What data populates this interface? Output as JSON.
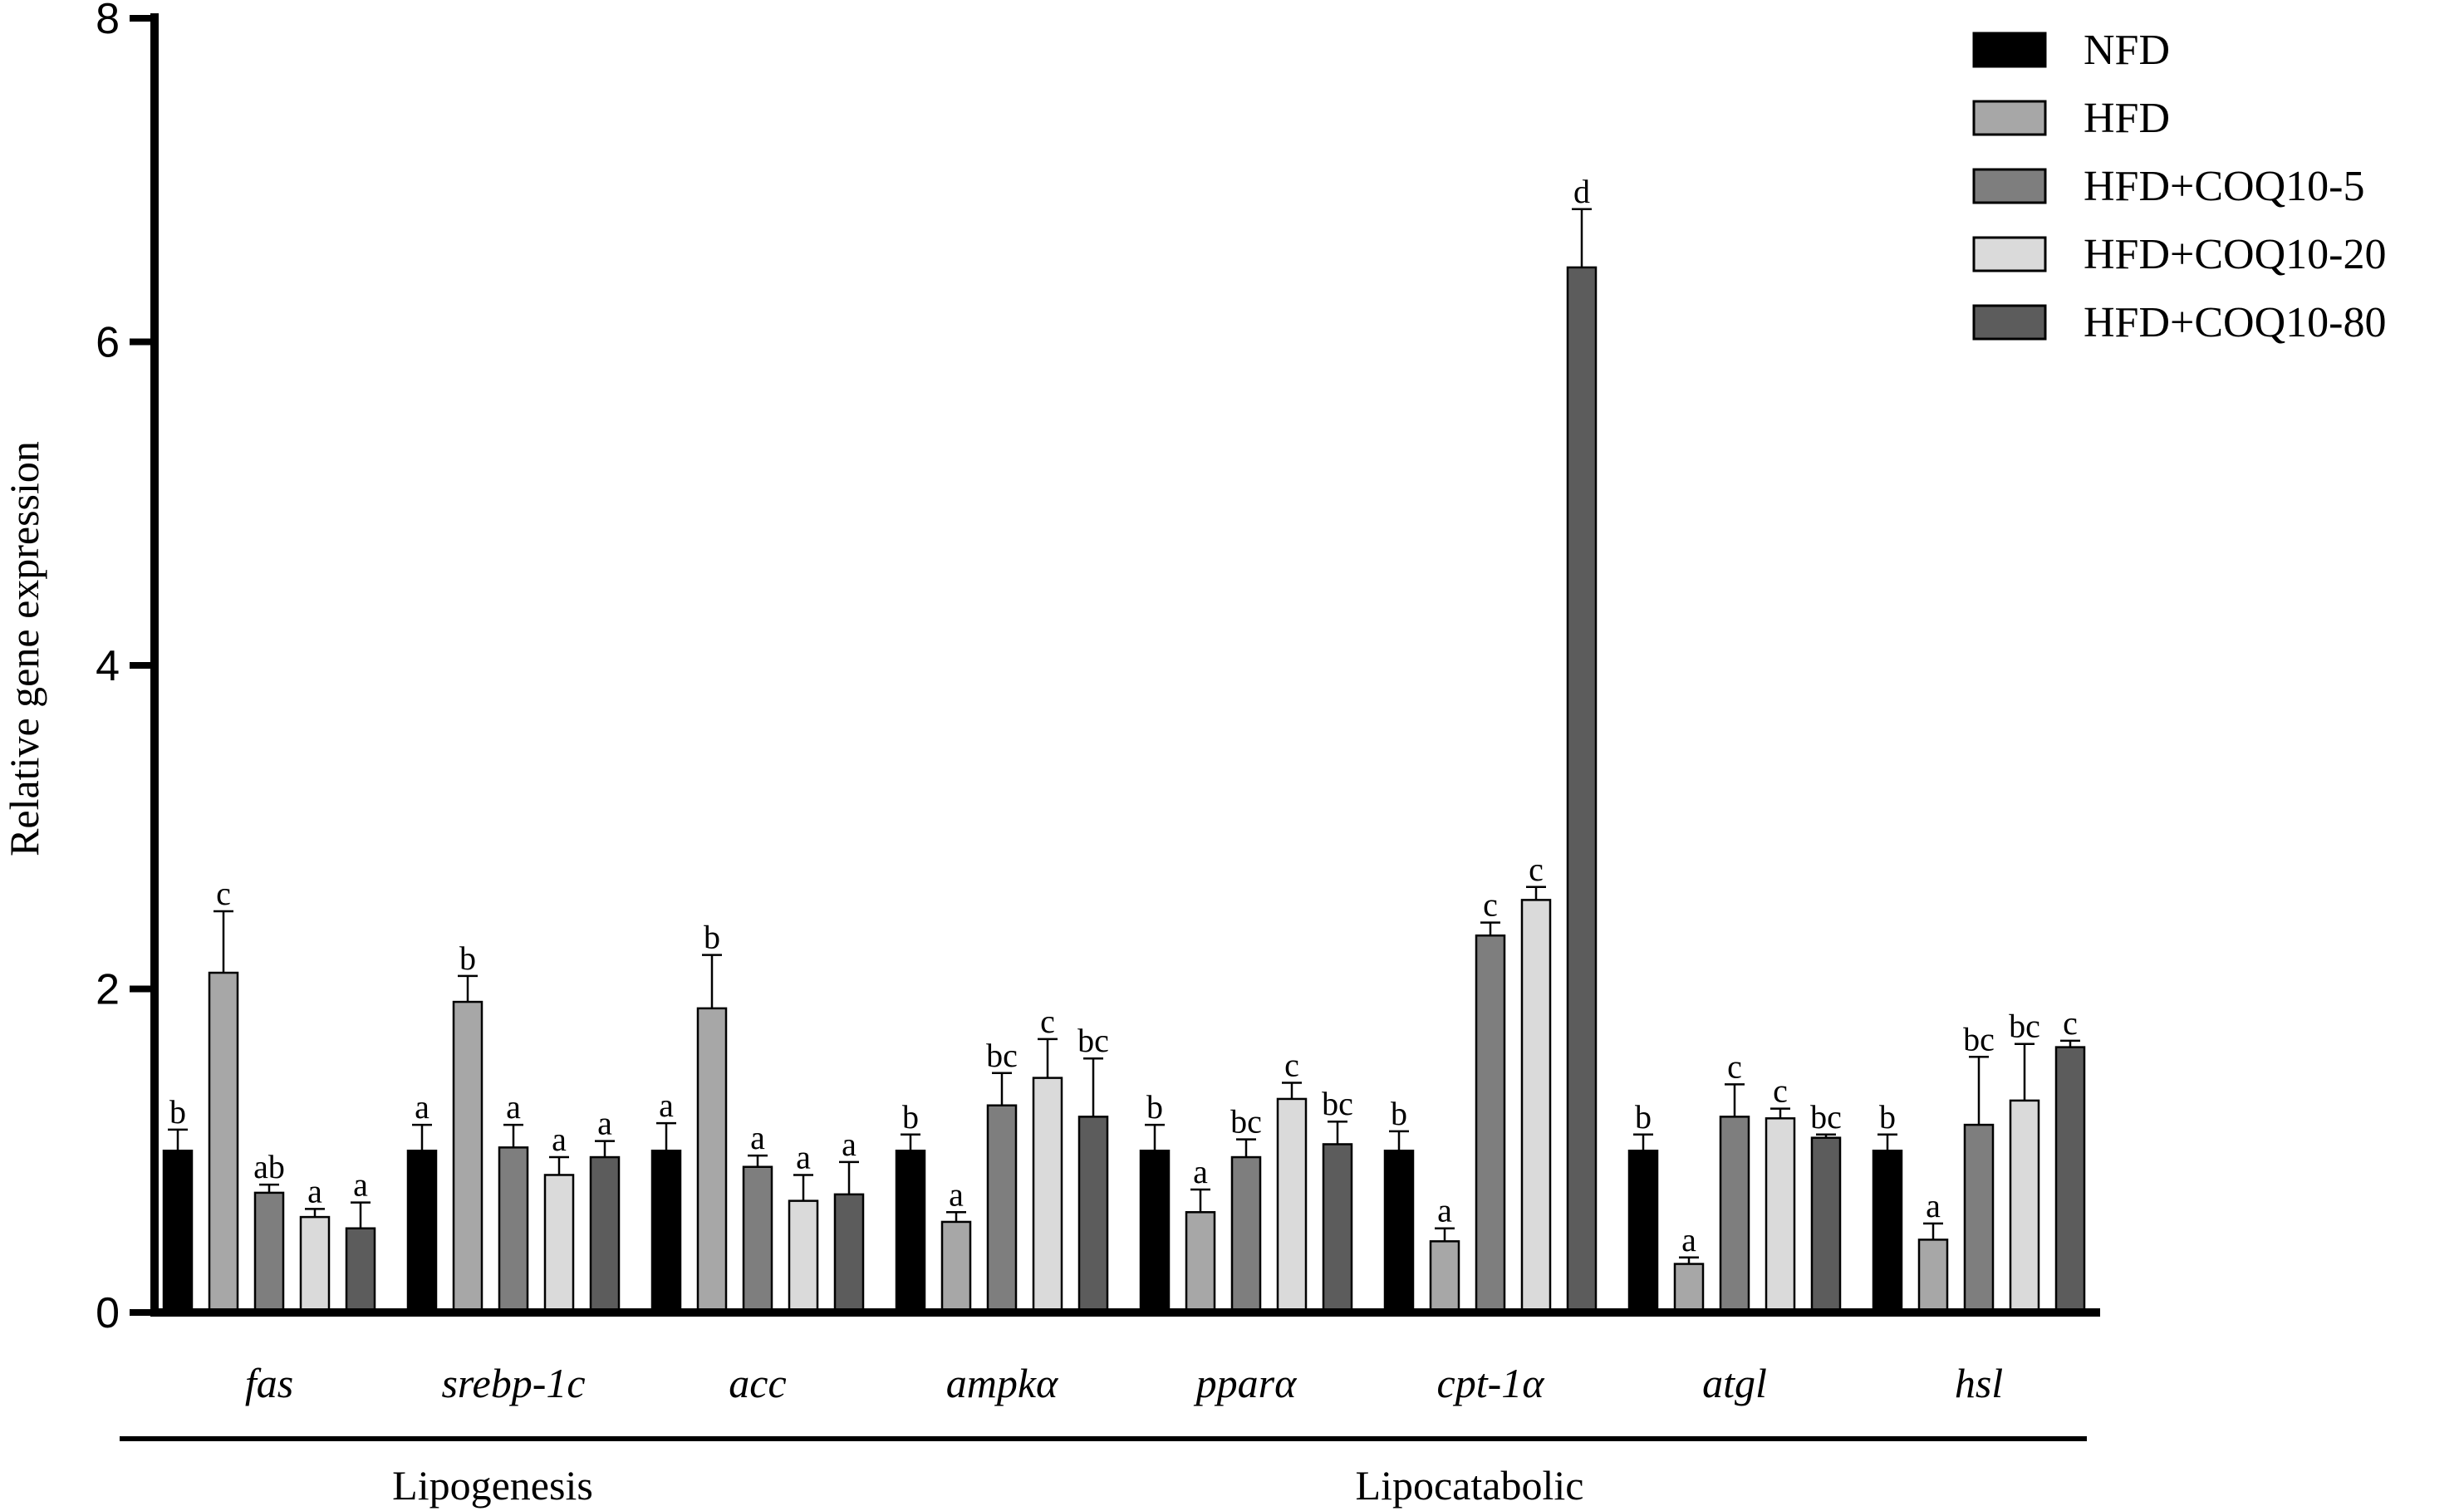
{
  "chart_data": {
    "type": "bar",
    "ylabel": "Relative gene expression",
    "ylim": [
      0,
      8
    ],
    "yticks": [
      0,
      2,
      4,
      6,
      8
    ],
    "categories": [
      "fas",
      "srebp-1c",
      "acc",
      "ampkα",
      "pparα",
      "cpt-1α",
      "atgl",
      "hsl"
    ],
    "groups": [
      {
        "label": "Lipogenesis",
        "categories": [
          "fas",
          "srebp-1c",
          "acc"
        ]
      },
      {
        "label": "Lipocatabolic",
        "categories": [
          "ampkα",
          "pparα",
          "cpt-1α",
          "atgl",
          "hsl"
        ]
      }
    ],
    "legend_position": "top-right",
    "series": [
      {
        "name": "NFD",
        "color": "#000000",
        "values": [
          1.0,
          1.0,
          1.0,
          1.0,
          1.0,
          1.0,
          1.0,
          1.0
        ],
        "errors": [
          0.13,
          0.16,
          0.17,
          0.1,
          0.16,
          0.12,
          0.1,
          0.1
        ],
        "sig": [
          "b",
          "a",
          "a",
          "b",
          "b",
          "b",
          "b",
          "b"
        ]
      },
      {
        "name": "HFD",
        "color": "#a7a7a7",
        "values": [
          2.1,
          1.92,
          1.88,
          0.56,
          0.62,
          0.44,
          0.3,
          0.45
        ],
        "errors": [
          0.38,
          0.16,
          0.33,
          0.06,
          0.14,
          0.08,
          0.04,
          0.1
        ],
        "sig": [
          "c",
          "b",
          "b",
          "a",
          "a",
          "a",
          "a",
          "a"
        ]
      },
      {
        "name": "HFD+COQ10-5",
        "color": "#7e7e7e",
        "values": [
          0.74,
          1.02,
          0.9,
          1.28,
          0.96,
          2.33,
          1.21,
          1.16
        ],
        "errors": [
          0.05,
          0.14,
          0.07,
          0.2,
          0.11,
          0.08,
          0.2,
          0.42
        ],
        "sig": [
          "ab",
          "a",
          "a",
          "bc",
          "bc",
          "c",
          "c",
          "bc"
        ]
      },
      {
        "name": "HFD+COQ10-20",
        "color": "#dadada",
        "values": [
          0.59,
          0.85,
          0.69,
          1.45,
          1.32,
          2.55,
          1.2,
          1.31
        ],
        "errors": [
          0.05,
          0.11,
          0.16,
          0.24,
          0.1,
          0.08,
          0.06,
          0.35
        ],
        "sig": [
          "a",
          "a",
          "a",
          "c",
          "c",
          "c",
          "c",
          "bc"
        ]
      },
      {
        "name": "HFD+COQ10-80",
        "color": "#5c5c5c",
        "values": [
          0.52,
          0.96,
          0.73,
          1.21,
          1.04,
          6.46,
          1.08,
          1.64
        ],
        "errors": [
          0.16,
          0.1,
          0.2,
          0.36,
          0.14,
          0.36,
          0.02,
          0.04
        ],
        "sig": [
          "a",
          "a",
          "a",
          "bc",
          "bc",
          "d",
          "bc",
          "c"
        ]
      }
    ]
  }
}
